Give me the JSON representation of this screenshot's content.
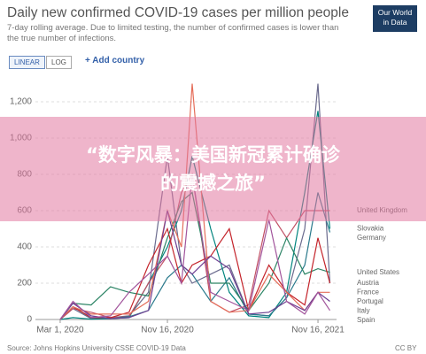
{
  "chart_data": {
    "type": "line",
    "title": "Daily new confirmed COVID-19 cases per million people",
    "subtitle": "7-day rolling average. Due to limited testing, the number of confirmed cases is lower than the true number of infections.",
    "source": "Source: Johns Hopkins University CSSE COVID-19 Data",
    "license": "CC BY",
    "x": [
      "2020-03-01",
      "2020-04-01",
      "2020-05-15",
      "2020-07-01",
      "2020-08-15",
      "2020-10-01",
      "2020-11-16",
      "2020-12-20",
      "2021-01-15",
      "2021-03-01",
      "2021-04-15",
      "2021-06-01",
      "2021-07-20",
      "2021-09-01",
      "2021-10-15",
      "2021-11-16",
      "2021-12-15"
    ],
    "xlim": [
      "2020-01-01",
      "2021-12-31"
    ],
    "xticks": [
      {
        "value": "2020-03-01",
        "label": "Mar 1, 2020"
      },
      {
        "value": "2020-11-16",
        "label": "Nov 16, 2020"
      },
      {
        "value": "2021-11-16",
        "label": "Nov 16, 2021"
      }
    ],
    "ylim": [
      0,
      1300
    ],
    "yticks": [
      0,
      200,
      400,
      600,
      800,
      {
        "value": 1000,
        "label": "1,000"
      },
      {
        "value": 1200,
        "label": "1,200"
      }
    ],
    "grid": true,
    "series": [
      {
        "name": "Austria",
        "color": "#6b6b8e",
        "values": [
          0,
          60,
          5,
          10,
          20,
          150,
          900,
          300,
          200,
          250,
          300,
          30,
          20,
          120,
          500,
          1300,
          200
        ]
      },
      {
        "name": "Slovakia",
        "color": "#00847e",
        "values": [
          0,
          10,
          2,
          5,
          10,
          200,
          400,
          600,
          900,
          500,
          150,
          20,
          10,
          150,
          700,
          1150,
          500
        ]
      },
      {
        "name": "United Kingdom",
        "color": "#c15065",
        "values": [
          0,
          60,
          40,
          10,
          15,
          200,
          350,
          700,
          800,
          100,
          40,
          80,
          600,
          450,
          600,
          600,
          600
        ]
      },
      {
        "name": "Germany",
        "color": "#2a7a8c",
        "values": [
          0,
          70,
          10,
          5,
          15,
          50,
          230,
          300,
          250,
          100,
          230,
          30,
          20,
          120,
          300,
          700,
          480
        ]
      },
      {
        "name": "United States",
        "color": "#2c8465",
        "values": [
          0,
          90,
          80,
          180,
          150,
          130,
          450,
          650,
          700,
          200,
          200,
          50,
          200,
          450,
          250,
          280,
          260
        ]
      },
      {
        "name": "France",
        "color": "#c4242b",
        "values": [
          0,
          70,
          10,
          10,
          40,
          300,
          500,
          200,
          300,
          350,
          500,
          50,
          300,
          150,
          80,
          450,
          200
        ]
      },
      {
        "name": "Portugal",
        "color": "#e56e5a",
        "values": [
          0,
          70,
          30,
          30,
          30,
          100,
          600,
          400,
          1300,
          100,
          40,
          50,
          250,
          150,
          50,
          150,
          150
        ]
      },
      {
        "name": "Italy",
        "color": "#6d3e91",
        "values": [
          0,
          90,
          20,
          5,
          10,
          50,
          600,
          300,
          250,
          350,
          280,
          30,
          40,
          100,
          50,
          150,
          100
        ]
      },
      {
        "name": "Spain",
        "color": "#a2559c",
        "values": [
          0,
          100,
          10,
          20,
          150,
          250,
          350,
          200,
          800,
          150,
          100,
          50,
          550,
          100,
          30,
          150,
          50
        ]
      }
    ]
  },
  "logo": {
    "line1": "Our World",
    "line2": "in Data"
  },
  "controls": {
    "linear": "LINEAR",
    "log": "LOG",
    "add": "+ Add country"
  },
  "overlay": {
    "text": "“数字风暴：美国新冠累计确诊的震撼之旅”"
  }
}
